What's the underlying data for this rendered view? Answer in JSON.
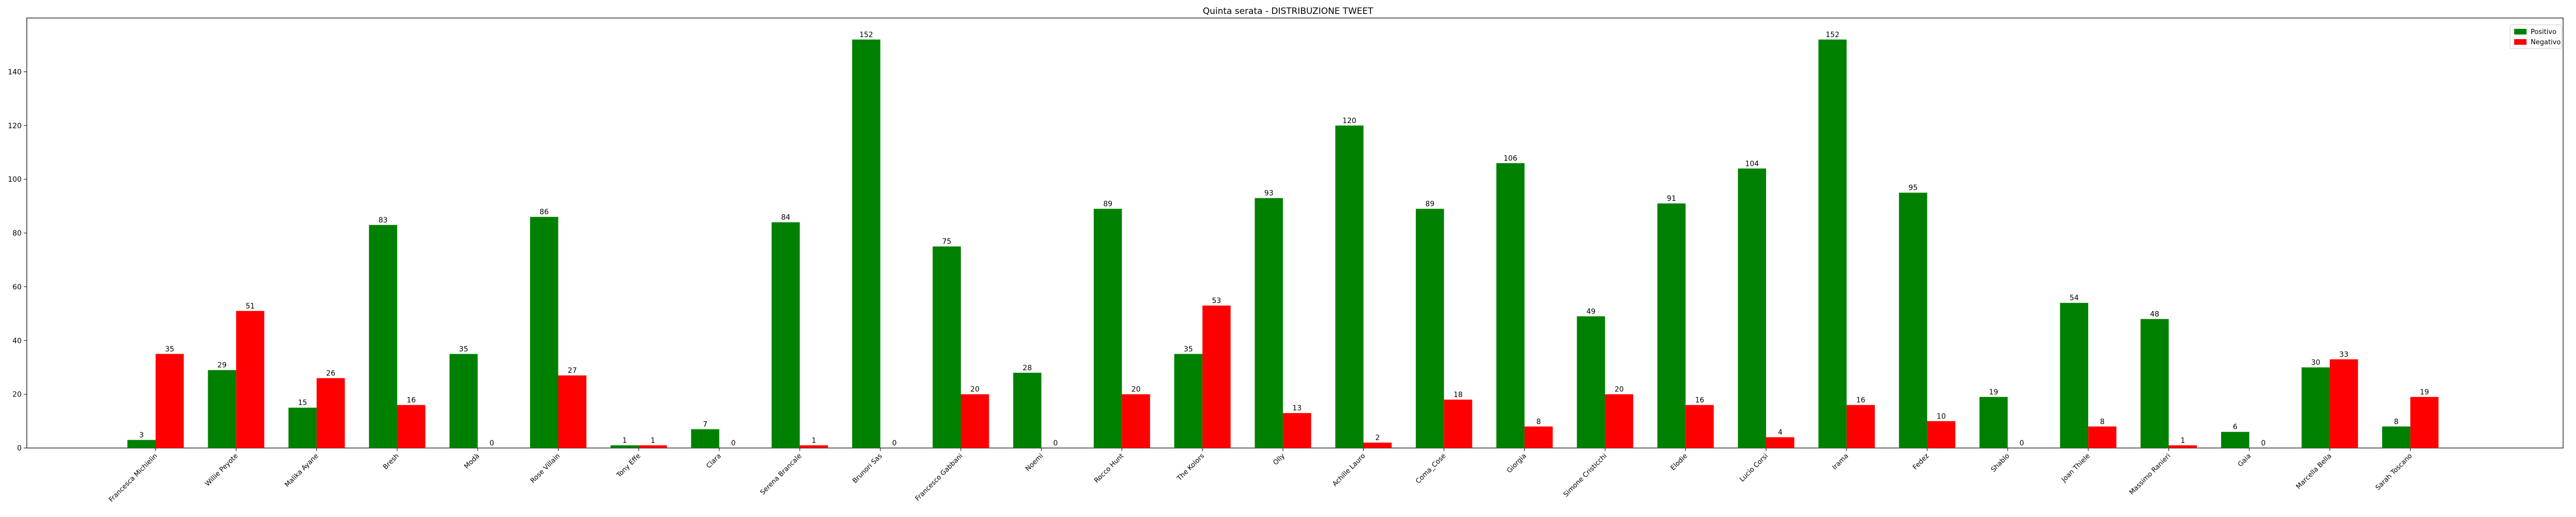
{
  "chart_data": {
    "type": "bar",
    "title": "Quinta serata - DISTRIBUZIONE TWEET",
    "xlabel": "",
    "ylabel": "",
    "ylim": [
      0,
      160
    ],
    "yticks": [
      0,
      20,
      40,
      60,
      80,
      100,
      120,
      140
    ],
    "legend": "top-right",
    "grid": false,
    "categories": [
      "Francesca Michielin",
      "Willie Peyote",
      "Malika Ayane",
      "Bresh",
      "Modà",
      "Rose Villain",
      "Tony Effe",
      "Clara",
      "Serena Brancale",
      "Brunori Sas",
      "Francesco Gabbani",
      "Noemi",
      "Rocco Hunt",
      "The Kolors",
      "Olly",
      "Achille Lauro",
      "Coma_Cose",
      "Giorgia",
      "Simone Cristicchi",
      "Elodie",
      "Lucio Corsi",
      "Irama",
      "Fedez",
      "Shablo",
      "Joan Thiele",
      "Massimo Ranieri",
      "Gaia",
      "Marcella Bella",
      "Sarah Toscano"
    ],
    "series": [
      {
        "name": "Positivo",
        "color": "#008000",
        "values": [
          3,
          29,
          15,
          83,
          35,
          86,
          1,
          7,
          84,
          152,
          75,
          28,
          89,
          35,
          93,
          120,
          89,
          106,
          49,
          91,
          104,
          152,
          95,
          19,
          54,
          48,
          6,
          30,
          8
        ]
      },
      {
        "name": "Negativo",
        "color": "#ff0000",
        "values": [
          35,
          51,
          26,
          16,
          0,
          27,
          1,
          0,
          1,
          0,
          20,
          0,
          20,
          53,
          13,
          2,
          18,
          8,
          20,
          16,
          4,
          16,
          10,
          0,
          8,
          1,
          0,
          33,
          19
        ]
      }
    ]
  }
}
